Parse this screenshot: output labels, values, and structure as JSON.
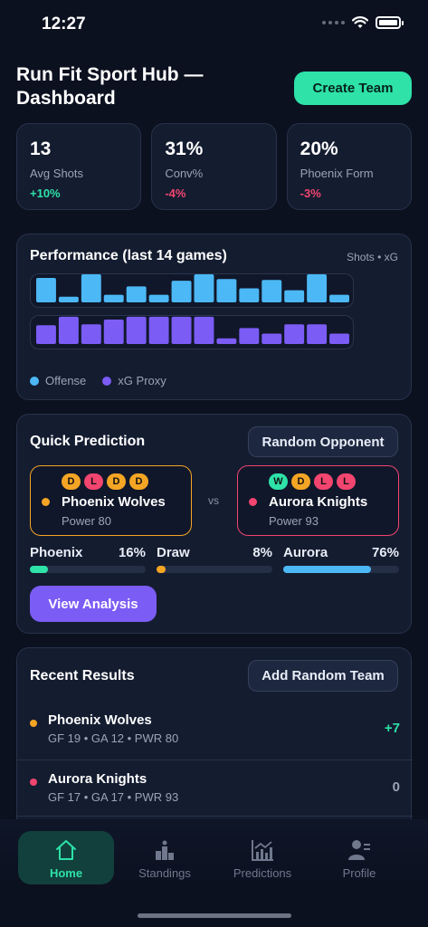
{
  "status_bar": {
    "time": "12:27"
  },
  "header": {
    "title": "Run Fit Sport Hub — Dashboard",
    "create_label": "Create Team"
  },
  "stats": [
    {
      "value": "13",
      "label": "Avg Shots",
      "delta": "+10%",
      "delta_color": "#2ee2a8"
    },
    {
      "value": "31%",
      "label": "Conv%",
      "delta": "-4%",
      "delta_color": "#f2456f"
    },
    {
      "value": "20%",
      "label": "Phoenix Form",
      "delta": "-3%",
      "delta_color": "#f2456f"
    }
  ],
  "performance": {
    "title": "Performance (last 14 games)",
    "subtitle": "Shots • xG",
    "legend": [
      {
        "label": "Offense",
        "color": "#4cb8f5"
      },
      {
        "label": "xG Proxy",
        "color": "#7b5cf5"
      }
    ]
  },
  "chart_data": {
    "type": "bar",
    "series": [
      {
        "name": "Offense",
        "color": "#4cb8f5",
        "values": [
          0.87,
          0.2,
          1.0,
          0.27,
          0.57,
          0.27,
          0.77,
          1.0,
          0.83,
          0.5,
          0.8,
          0.43,
          1.0,
          0.27
        ]
      },
      {
        "name": "xG Proxy",
        "color": "#7b5cf5",
        "values": [
          0.67,
          0.97,
          0.7,
          0.87,
          0.97,
          0.97,
          0.97,
          0.97,
          0.2,
          0.57,
          0.37,
          0.7,
          0.7,
          0.37
        ]
      }
    ]
  },
  "prediction": {
    "title": "Quick Prediction",
    "random_opponent_label": "Random Opponent",
    "vs": "vs",
    "home": {
      "name": "Phoenix Wolves",
      "power": "Power 80",
      "color": "#f5a524",
      "form": [
        "D",
        "L",
        "D",
        "D"
      ]
    },
    "away": {
      "name": "Aurora Knights",
      "power": "Power 93",
      "color": "#f2456f",
      "form": [
        "W",
        "D",
        "L",
        "L"
      ]
    },
    "probabilities": [
      {
        "label": "Phoenix",
        "pct": "16%",
        "value": 0.16,
        "color": "#2ee2a8"
      },
      {
        "label": "Draw",
        "pct": "8%",
        "value": 0.08,
        "color": "#f5a524"
      },
      {
        "label": "Aurora",
        "pct": "76%",
        "value": 0.76,
        "color": "#4cb8f5"
      }
    ],
    "analysis_label": "View Analysis",
    "form_colors": {
      "W": "#2ee2a8",
      "D": "#f5a524",
      "L": "#f2456f"
    }
  },
  "results": {
    "title": "Recent Results",
    "add_label": "Add Random Team",
    "rows": [
      {
        "name": "Phoenix Wolves",
        "meta": "GF 19 • GA 12 • PWR 80",
        "diff": "+7",
        "dot_color": "#f5a524",
        "diff_color": "#2ee2a8"
      },
      {
        "name": "Aurora Knights",
        "meta": "GF 17 • GA 17 • PWR 93",
        "diff": "0",
        "dot_color": "#f2456f",
        "diff_color": "#9aa4b8"
      }
    ]
  },
  "nav": {
    "items": [
      {
        "label": "Home",
        "icon": "home-icon",
        "active": true
      },
      {
        "label": "Standings",
        "icon": "standings-icon",
        "active": false
      },
      {
        "label": "Predictions",
        "icon": "predictions-icon",
        "active": false
      },
      {
        "label": "Profile",
        "icon": "profile-icon",
        "active": false
      }
    ]
  }
}
